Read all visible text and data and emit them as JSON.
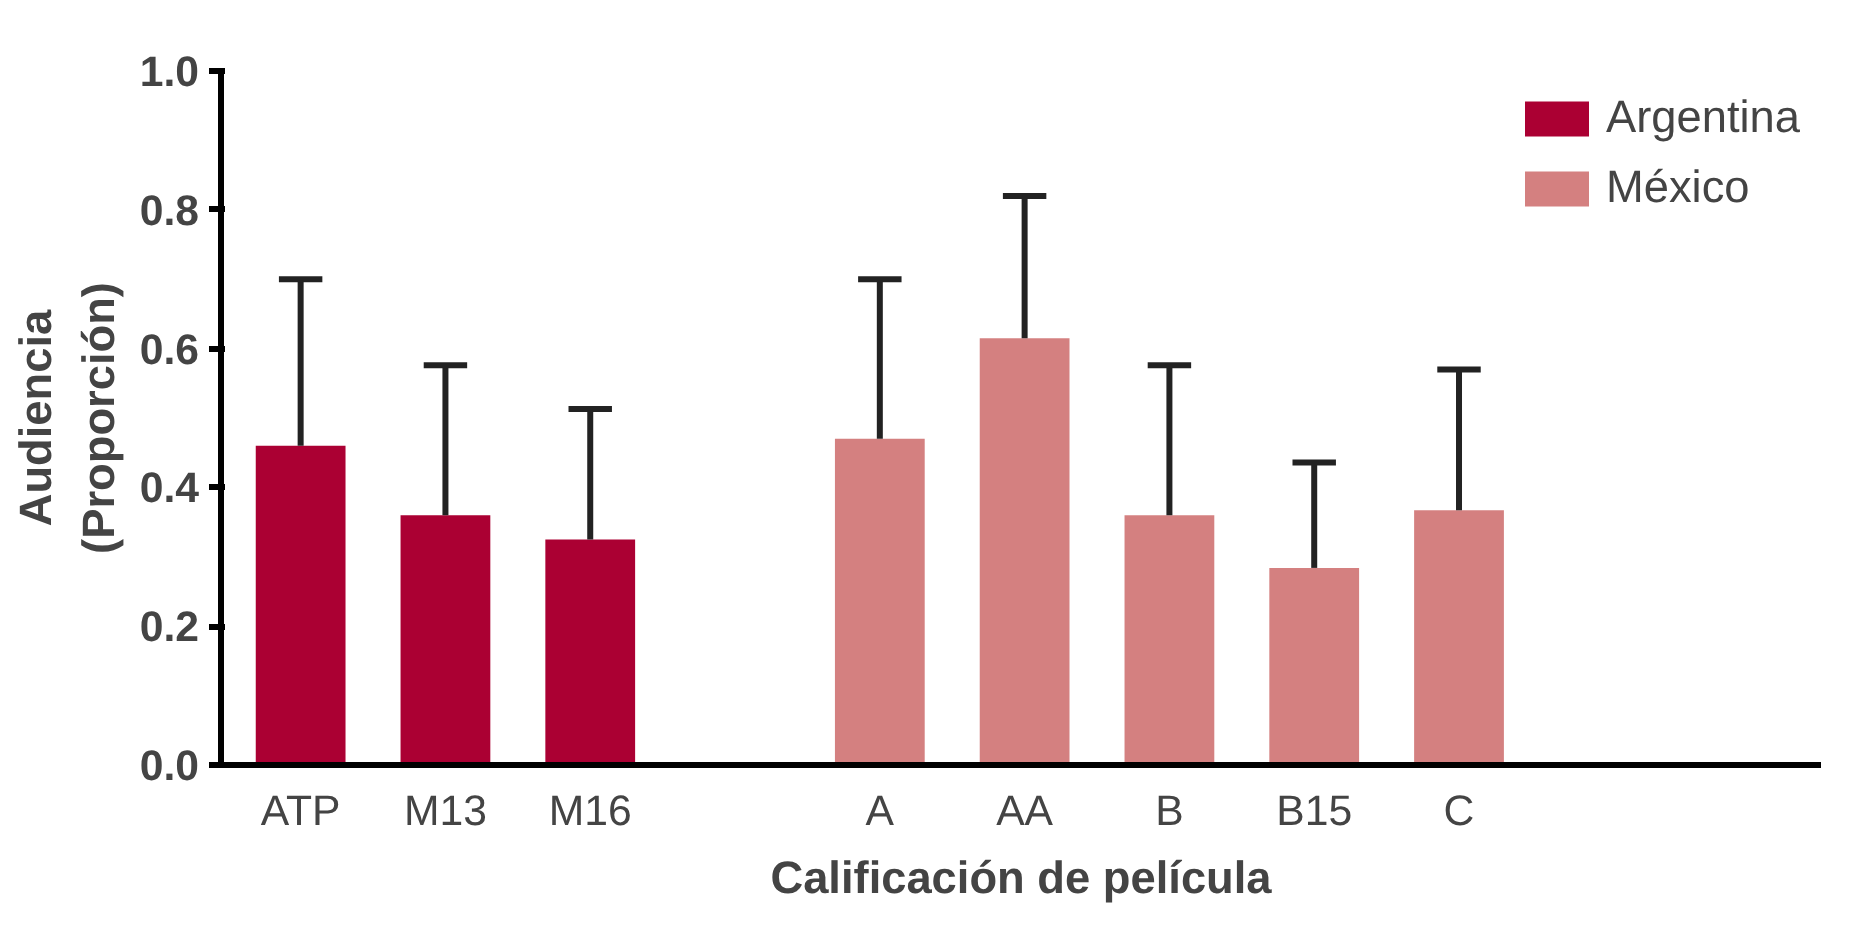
{
  "chart_data": {
    "type": "bar",
    "xlabel": "Calificación de película",
    "ylabel": "Audiencia\n(Proporción)",
    "categories": [
      "ATP",
      "M13",
      "M16",
      null,
      "A",
      "AA",
      "B",
      "B15",
      "C"
    ],
    "ylim": [
      0,
      1.0
    ],
    "yticks": [
      {
        "value": 0,
        "label": "0.0"
      },
      {
        "value": 0.2,
        "label": "0.2"
      },
      {
        "value": 0.4,
        "label": "0.4"
      },
      {
        "value": 0.6,
        "label": "0.6"
      },
      {
        "value": 0.8,
        "label": "0.8"
      },
      {
        "value": 1,
        "label": "1.0"
      }
    ],
    "grid": false,
    "legend": "top right",
    "series": [
      {
        "name": "Argentina",
        "color": "#ab0033",
        "values": [
          0.46,
          0.36,
          0.325,
          null,
          null,
          null,
          null,
          null,
          null
        ],
        "errors": [
          [
            0.46,
            0.7
          ],
          [
            0.36,
            0.576
          ],
          [
            0.325,
            0.513
          ],
          null,
          null,
          null,
          null,
          null,
          null
        ]
      },
      {
        "name": "México",
        "color": "#d48080",
        "values": [
          null,
          null,
          null,
          null,
          0.47,
          0.615,
          0.36,
          0.284,
          0.367
        ],
        "errors": [
          null,
          null,
          null,
          null,
          [
            0.47,
            0.7
          ],
          [
            0.615,
            0.82
          ],
          [
            0.36,
            0.576
          ],
          [
            0.284,
            0.436
          ],
          [
            0.367,
            0.57
          ]
        ]
      }
    ]
  }
}
